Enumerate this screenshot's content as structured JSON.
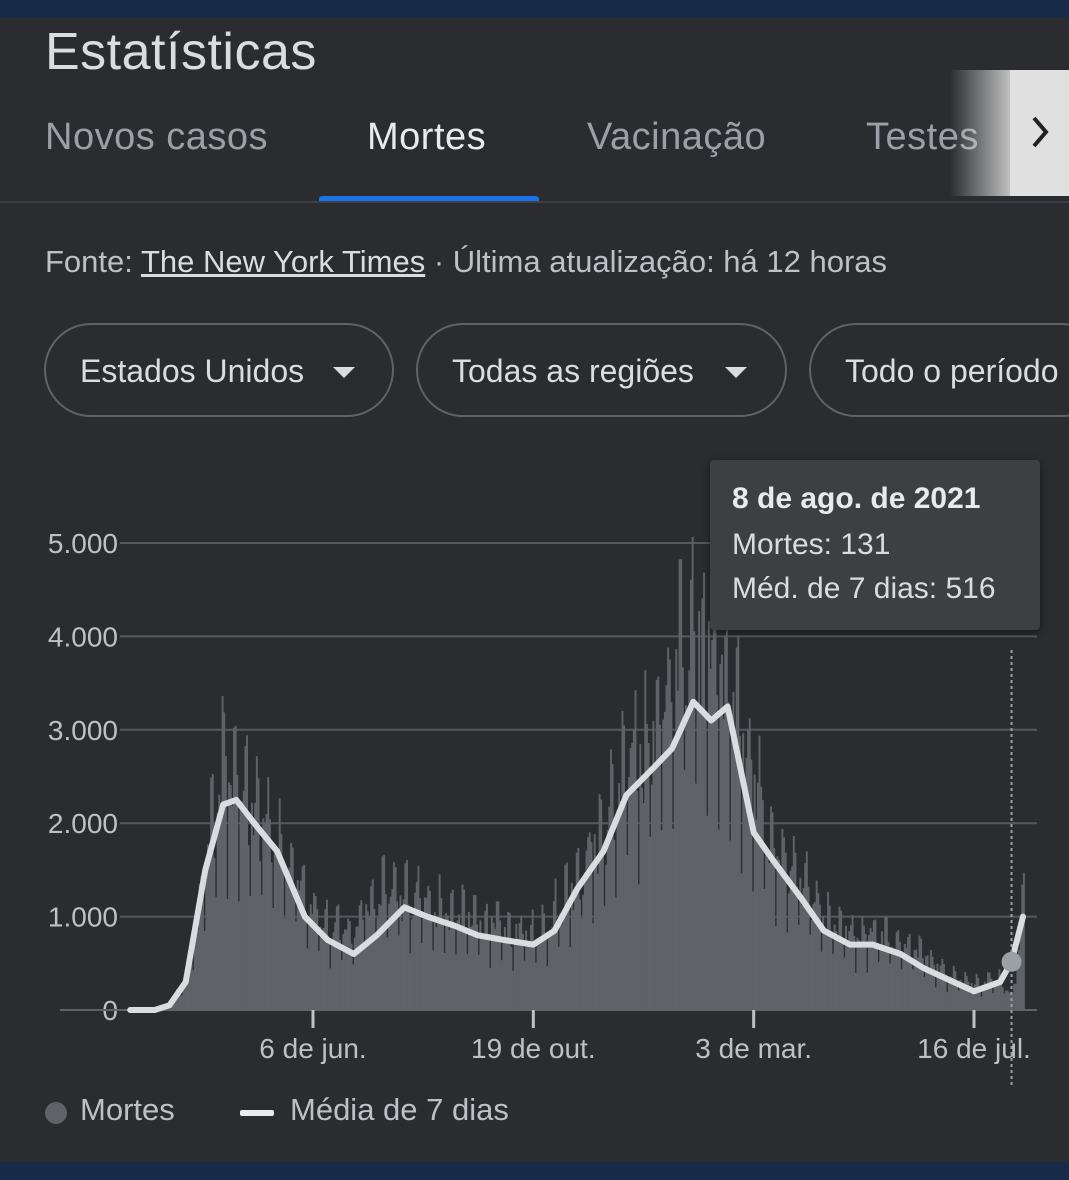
{
  "header": {
    "title": "Estatísticas"
  },
  "tabs": [
    {
      "label": "Novos casos"
    },
    {
      "label": "Mortes"
    },
    {
      "label": "Vacinação"
    },
    {
      "label": "Testes"
    }
  ],
  "source": {
    "prefix": "Fonte: ",
    "link": "The New York Times",
    "suffix": " · Última atualização: há 12 horas"
  },
  "filters": [
    {
      "label": "Estados Unidos"
    },
    {
      "label": "Todas as regiões"
    },
    {
      "label": "Todo o período"
    }
  ],
  "tooltip": {
    "date": "8 de ago. de 2021",
    "deaths": "Mortes: 131",
    "avg": "Méd. de 7 dias: 516"
  },
  "legend": {
    "deaths": "Mortes",
    "avg": "Média de 7 dias"
  },
  "colors": {
    "bars": "#5f6368",
    "line": "#dadce0",
    "accent": "#1a73e8",
    "grid": "#5f6368"
  },
  "chart_data": {
    "type": "bar",
    "x_tick_labels": [
      "6 de jun.",
      "19 de out.",
      "3 de mar.",
      "16 de jul."
    ],
    "y_tick_labels": [
      "0",
      "1.000",
      "2.000",
      "3.000",
      "4.000",
      "5.000"
    ],
    "ylim": [
      0,
      5000
    ],
    "grid": true,
    "legend_position": "bottom-left",
    "series": [
      {
        "name": "Média de 7 dias",
        "type": "line",
        "x": [
          "2020-02-15",
          "2020-03-01",
          "2020-03-10",
          "2020-03-20",
          "2020-04-01",
          "2020-04-12",
          "2020-04-20",
          "2020-05-01",
          "2020-05-15",
          "2020-06-01",
          "2020-06-15",
          "2020-07-01",
          "2020-07-15",
          "2020-08-01",
          "2020-08-15",
          "2020-09-01",
          "2020-09-15",
          "2020-10-01",
          "2020-10-19",
          "2020-11-01",
          "2020-11-15",
          "2020-12-01",
          "2020-12-15",
          "2021-01-01",
          "2021-01-12",
          "2021-01-25",
          "2021-02-05",
          "2021-02-15",
          "2021-03-03",
          "2021-03-15",
          "2021-04-01",
          "2021-04-15",
          "2021-05-01",
          "2021-05-15",
          "2021-06-01",
          "2021-06-15",
          "2021-07-01",
          "2021-07-16",
          "2021-08-01",
          "2021-08-08",
          "2021-08-15"
        ],
        "values": [
          0,
          0,
          50,
          300,
          1500,
          2200,
          2250,
          2000,
          1700,
          1000,
          750,
          600,
          800,
          1100,
          1000,
          900,
          800,
          750,
          700,
          850,
          1300,
          1700,
          2300,
          2600,
          2800,
          3300,
          3100,
          3250,
          1900,
          1600,
          1200,
          850,
          700,
          700,
          600,
          450,
          320,
          200,
          300,
          516,
          1000
        ]
      },
      {
        "name": "Mortes",
        "type": "bar",
        "x": [
          "2020-02-15",
          "2020-03-01",
          "2020-03-10",
          "2020-03-20",
          "2020-04-01",
          "2020-04-12",
          "2020-04-20",
          "2020-05-01",
          "2020-05-15",
          "2020-06-01",
          "2020-06-15",
          "2020-07-01",
          "2020-07-15",
          "2020-08-01",
          "2020-08-15",
          "2020-09-01",
          "2020-09-15",
          "2020-10-01",
          "2020-10-19",
          "2020-11-01",
          "2020-11-15",
          "2020-12-01",
          "2020-12-15",
          "2021-01-01",
          "2021-01-12",
          "2021-01-25",
          "2021-02-05",
          "2021-02-15",
          "2021-03-03",
          "2021-03-15",
          "2021-04-01",
          "2021-04-15",
          "2021-05-01",
          "2021-05-15",
          "2021-06-01",
          "2021-06-15",
          "2021-07-01",
          "2021-07-16",
          "2021-08-01",
          "2021-08-08",
          "2021-08-15"
        ],
        "values": [
          0,
          5,
          60,
          350,
          1700,
          2700,
          2400,
          2200,
          1800,
          1300,
          900,
          900,
          1300,
          1250,
          1200,
          1050,
          1000,
          900,
          850,
          1100,
          1500,
          2000,
          2700,
          3000,
          3600,
          4400,
          3900,
          3600,
          2500,
          1800,
          1400,
          1000,
          850,
          850,
          750,
          600,
          400,
          300,
          350,
          131,
          1400
        ]
      }
    ],
    "highlight": {
      "date": "2021-08-08",
      "deaths": 131,
      "avg": 516
    }
  }
}
